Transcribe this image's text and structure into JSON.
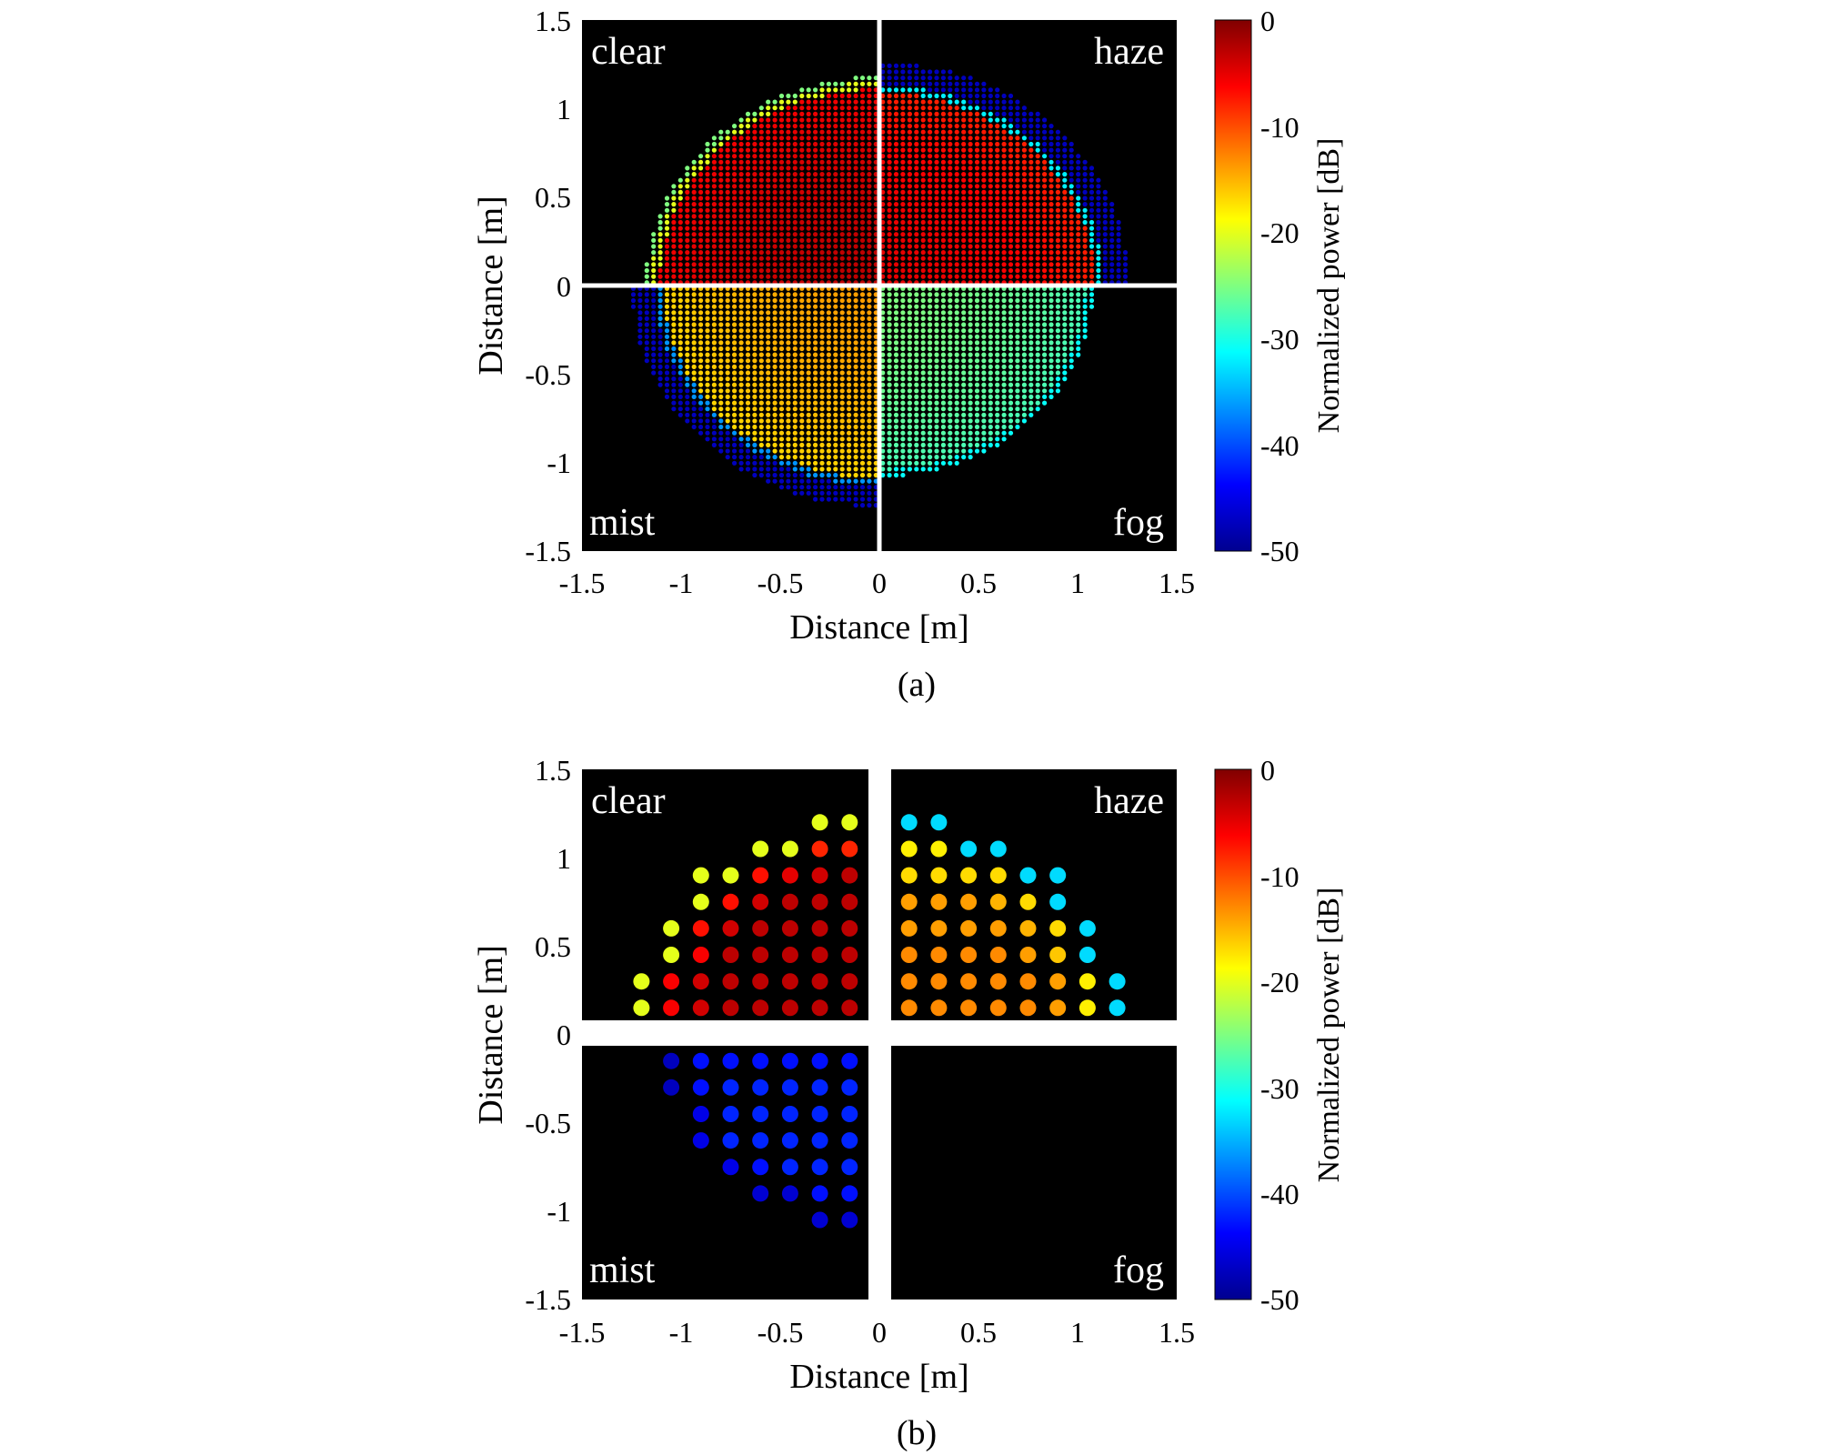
{
  "chart_data": [
    {
      "panel": "(a)",
      "type": "heatmap",
      "xlabel": "Distance [m]",
      "ylabel": "Distance [m]",
      "xlim": [
        -1.5,
        1.5
      ],
      "ylim": [
        -1.5,
        1.5
      ],
      "xticks": [
        "-1.5",
        "-1",
        "-0.5",
        "0",
        "0.5",
        "1",
        "1.5"
      ],
      "yticks": [
        "1.5",
        "1",
        "0.5",
        "0",
        "-0.5",
        "-1",
        "-1.5"
      ],
      "colorbar": {
        "label": "Normalized power [dB]",
        "range": [
          -50,
          0
        ],
        "ticks": [
          "0",
          "-10",
          "-20",
          "-30",
          "-40",
          "-50"
        ],
        "colormap": "jet"
      },
      "background": "#000000",
      "divider_color": "#ffffff",
      "grid_spacing_m": 0.034,
      "quadrants": [
        {
          "label": "clear",
          "position": "top-left",
          "core_radius_m": 1.15,
          "edge_width_m": 0.03,
          "core_dB": -3,
          "edge_dB": -25
        },
        {
          "label": "haze",
          "position": "top-right",
          "core_radius_m": 1.13,
          "edge_width_m": 0.13,
          "core_dB": -5,
          "edge_dB": -47
        },
        {
          "label": "mist",
          "position": "bottom-left",
          "core_radius_m": 1.13,
          "edge_width_m": 0.12,
          "core_dB": -14,
          "edge_dB": -47
        },
        {
          "label": "fog",
          "position": "bottom-right",
          "core_radius_m": 1.08,
          "edge_width_m": 0.0,
          "core_dB": -25,
          "edge_dB": -25
        }
      ]
    },
    {
      "panel": "(b)",
      "type": "scatter",
      "xlabel": "Distance [m]",
      "ylabel": "Distance [m]",
      "xlim": [
        -1.5,
        1.5
      ],
      "ylim": [
        -1.5,
        1.5
      ],
      "xticks": [
        "-1.5",
        "-1",
        "-0.5",
        "0",
        "0.5",
        "1",
        "1.5"
      ],
      "yticks": [
        "1.5",
        "1",
        "0.5",
        "0",
        "-0.5",
        "-1",
        "-1.5"
      ],
      "colorbar": {
        "label": "Normalized power [dB]",
        "range": [
          -50,
          0
        ],
        "ticks": [
          "0",
          "-10",
          "-20",
          "-30",
          "-40",
          "-50"
        ],
        "colormap": "jet"
      },
      "background": "#000000",
      "quadrants": [
        {
          "label": "clear",
          "position": "top-left",
          "rows": [
            {
              "y": 1.2,
              "x": [
                -0.3,
                -0.15
              ],
              "dB": [
                -20,
                -20
              ]
            },
            {
              "y": 1.05,
              "x": [
                -0.6,
                -0.45,
                -0.3,
                -0.15
              ],
              "dB": [
                -20,
                -20,
                -8,
                -8
              ]
            },
            {
              "y": 0.9,
              "x": [
                -0.9,
                -0.75,
                -0.6,
                -0.45,
                -0.3,
                -0.15
              ],
              "dB": [
                -20,
                -20,
                -7,
                -5,
                -4,
                -3
              ]
            },
            {
              "y": 0.75,
              "x": [
                -0.9,
                -0.75,
                -0.6,
                -0.45,
                -0.3,
                -0.15
              ],
              "dB": [
                -20,
                -7,
                -4,
                -3,
                -3,
                -3
              ]
            },
            {
              "y": 0.6,
              "x": [
                -1.05,
                -0.9,
                -0.75,
                -0.6,
                -0.45,
                -0.3,
                -0.15
              ],
              "dB": [
                -20,
                -7,
                -4,
                -3,
                -3,
                -3,
                -3
              ]
            },
            {
              "y": 0.45,
              "x": [
                -1.05,
                -0.9,
                -0.75,
                -0.6,
                -0.45,
                -0.3,
                -0.15
              ],
              "dB": [
                -20,
                -6,
                -3,
                -3,
                -3,
                -3,
                -3
              ]
            },
            {
              "y": 0.3,
              "x": [
                -1.2,
                -1.05,
                -0.9,
                -0.75,
                -0.6,
                -0.45,
                -0.3,
                -0.15
              ],
              "dB": [
                -20,
                -6,
                -4,
                -3,
                -3,
                -3,
                -3,
                -3
              ]
            },
            {
              "y": 0.15,
              "x": [
                -1.2,
                -1.05,
                -0.9,
                -0.75,
                -0.6,
                -0.45,
                -0.3,
                -0.15
              ],
              "dB": [
                -20,
                -6,
                -4,
                -3,
                -3,
                -3,
                -3,
                -3
              ]
            }
          ]
        },
        {
          "label": "haze",
          "position": "top-right",
          "rows": [
            {
              "y": 1.2,
              "x": [
                0.15,
                0.3
              ],
              "dB": [
                -33,
                -33
              ]
            },
            {
              "y": 1.05,
              "x": [
                0.15,
                0.3,
                0.45,
                0.6
              ],
              "dB": [
                -18,
                -18,
                -33,
                -33
              ]
            },
            {
              "y": 0.9,
              "x": [
                0.15,
                0.3,
                0.45,
                0.6,
                0.75,
                0.9
              ],
              "dB": [
                -17,
                -17,
                -17,
                -17,
                -33,
                -33
              ]
            },
            {
              "y": 0.75,
              "x": [
                0.15,
                0.3,
                0.45,
                0.6,
                0.75,
                0.9
              ],
              "dB": [
                -14,
                -14,
                -14,
                -15,
                -17,
                -33
              ]
            },
            {
              "y": 0.6,
              "x": [
                0.15,
                0.3,
                0.45,
                0.6,
                0.75,
                0.9,
                1.05
              ],
              "dB": [
                -14,
                -14,
                -14,
                -14,
                -15,
                -17,
                -33
              ]
            },
            {
              "y": 0.45,
              "x": [
                0.15,
                0.3,
                0.45,
                0.6,
                0.75,
                0.9,
                1.05
              ],
              "dB": [
                -13,
                -13,
                -13,
                -13,
                -14,
                -16,
                -33
              ]
            },
            {
              "y": 0.3,
              "x": [
                0.15,
                0.3,
                0.45,
                0.6,
                0.75,
                0.9,
                1.05,
                1.2
              ],
              "dB": [
                -13,
                -13,
                -13,
                -13,
                -13,
                -14,
                -18,
                -33
              ]
            },
            {
              "y": 0.15,
              "x": [
                0.15,
                0.3,
                0.45,
                0.6,
                0.75,
                0.9,
                1.05,
                1.2
              ],
              "dB": [
                -13,
                -13,
                -13,
                -13,
                -13,
                -14,
                -18,
                -33
              ]
            }
          ]
        },
        {
          "label": "mist",
          "position": "bottom-left",
          "rows": [
            {
              "y": -0.15,
              "x": [
                -1.05,
                -0.9,
                -0.75,
                -0.6,
                -0.45,
                -0.3,
                -0.15
              ],
              "dB": [
                -47,
                -43,
                -43,
                -43,
                -43,
                -43,
                -43
              ]
            },
            {
              "y": -0.3,
              "x": [
                -1.05,
                -0.9,
                -0.75,
                -0.6,
                -0.45,
                -0.3,
                -0.15
              ],
              "dB": [
                -47,
                -43,
                -42,
                -42,
                -42,
                -42,
                -42
              ]
            },
            {
              "y": -0.45,
              "x": [
                -0.9,
                -0.75,
                -0.6,
                -0.45,
                -0.3,
                -0.15
              ],
              "dB": [
                -45,
                -42,
                -42,
                -42,
                -42,
                -42
              ]
            },
            {
              "y": -0.6,
              "x": [
                -0.9,
                -0.75,
                -0.6,
                -0.45,
                -0.3,
                -0.15
              ],
              "dB": [
                -45,
                -42,
                -42,
                -42,
                -42,
                -42
              ]
            },
            {
              "y": -0.75,
              "x": [
                -0.75,
                -0.6,
                -0.45,
                -0.3,
                -0.15
              ],
              "dB": [
                -45,
                -43,
                -42,
                -42,
                -42
              ]
            },
            {
              "y": -0.9,
              "x": [
                -0.6,
                -0.45,
                -0.3,
                -0.15
              ],
              "dB": [
                -46,
                -46,
                -43,
                -43
              ]
            },
            {
              "y": -1.05,
              "x": [
                -0.3,
                -0.15
              ],
              "dB": [
                -46,
                -46
              ]
            }
          ]
        },
        {
          "label": "fog",
          "position": "bottom-right",
          "rows": []
        }
      ]
    }
  ],
  "captions": {
    "a": "(a)",
    "b": "(b)"
  }
}
